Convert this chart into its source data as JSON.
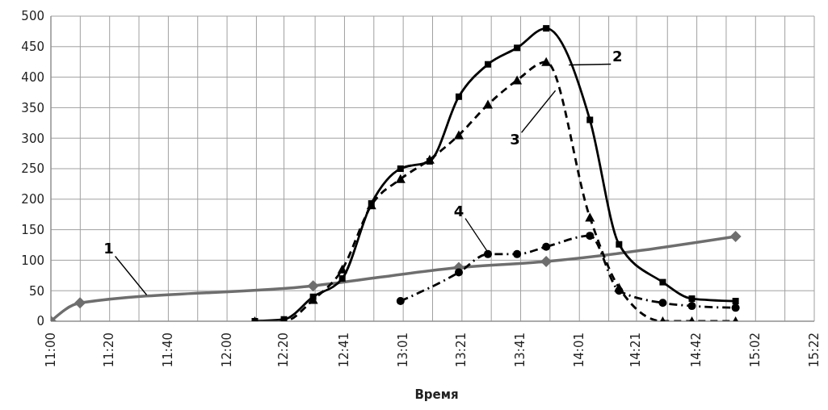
{
  "chart_data": {
    "type": "line",
    "xlabel": "Время",
    "grid": true,
    "xlim": [
      11,
      15.3667
    ],
    "xticks": [
      {
        "value": 11,
        "label": "11:00"
      },
      {
        "value": 11.1679,
        "label": null
      },
      {
        "value": 11.3359,
        "label": "11:20"
      },
      {
        "value": 11.5038,
        "label": null
      },
      {
        "value": 11.6718,
        "label": "11:40"
      },
      {
        "value": 11.8397,
        "label": null
      },
      {
        "value": 12.0077,
        "label": "12:00"
      },
      {
        "value": 12.1756,
        "label": null
      },
      {
        "value": 12.3333,
        "label": "12:20"
      },
      {
        "value": 12.5115,
        "label": null
      },
      {
        "value": 12.6795,
        "label": "12:41"
      },
      {
        "value": 12.8474,
        "label": null
      },
      {
        "value": 13.0154,
        "label": "13:01"
      },
      {
        "value": 13.1833,
        "label": null
      },
      {
        "value": 13.3513,
        "label": "13:21"
      },
      {
        "value": 13.5192,
        "label": null
      },
      {
        "value": 13.6872,
        "label": "13:41"
      },
      {
        "value": 13.8551,
        "label": null
      },
      {
        "value": 14.0231,
        "label": "14:01"
      },
      {
        "value": 14.191,
        "label": null
      },
      {
        "value": 14.35,
        "label": "14:21"
      },
      {
        "value": 14.5269,
        "label": null
      },
      {
        "value": 14.6949,
        "label": "14:42"
      },
      {
        "value": 14.8628,
        "label": null
      },
      {
        "value": 15.0308,
        "label": "15:02"
      },
      {
        "value": 15.1987,
        "label": null
      },
      {
        "value": 15.3667,
        "label": "15:22"
      }
    ],
    "ylim": [
      0,
      500
    ],
    "yticks": [
      0,
      50,
      100,
      150,
      200,
      250,
      300,
      350,
      400,
      450,
      500
    ],
    "series": [
      {
        "color": "#6e6e6e",
        "marker": "diamond",
        "line_style": "solid",
        "x": [
          11,
          11.1667,
          12.5,
          13.3333,
          13.8333,
          14.9167
        ],
        "values": [
          0,
          30,
          58,
          88,
          98,
          139
        ]
      },
      {
        "color": "#000000",
        "marker": "square",
        "line_style": "solid",
        "x": [
          12.1667,
          12.3333,
          12.5,
          12.6667,
          12.8333,
          13,
          13.1667,
          13.3333,
          13.5,
          13.6667,
          13.8333,
          14.0833,
          14.25,
          14.5,
          14.6667,
          14.9167
        ],
        "values": [
          0,
          3,
          40,
          70,
          193,
          250,
          262,
          368,
          421,
          448,
          480,
          330,
          126,
          64,
          37,
          33
        ]
      },
      {
        "color": "#000000",
        "marker": "triangle",
        "line_style": "dashed",
        "x": [
          12.1667,
          12.3333,
          12.5,
          12.6667,
          12.8333,
          13,
          13.1667,
          13.3333,
          13.5,
          13.6667,
          13.8333,
          14.0833,
          14.25,
          14.5,
          14.6667,
          14.9167
        ],
        "values": [
          0,
          0,
          35,
          85,
          190,
          233,
          265,
          305,
          355,
          395,
          425,
          170,
          55,
          0,
          0,
          0
        ]
      },
      {
        "color": "#000000",
        "marker": "circle",
        "line_style": "dotted",
        "x": [
          13,
          13.3333,
          13.5,
          13.6667,
          13.8333,
          14.0833,
          14.25,
          14.5,
          14.6667,
          14.9167
        ],
        "values": [
          33,
          80,
          110,
          110,
          122,
          140,
          50,
          30,
          25,
          22
        ]
      }
    ],
    "annotations": [
      {
        "text": "1",
        "x": 11.548,
        "y": 43
      },
      {
        "text": "2",
        "x": 13.963,
        "y": 420
      },
      {
        "text": "3",
        "x": 13.886,
        "y": 378
      },
      {
        "text": "4",
        "x": 13.5,
        "y": 113
      }
    ]
  }
}
